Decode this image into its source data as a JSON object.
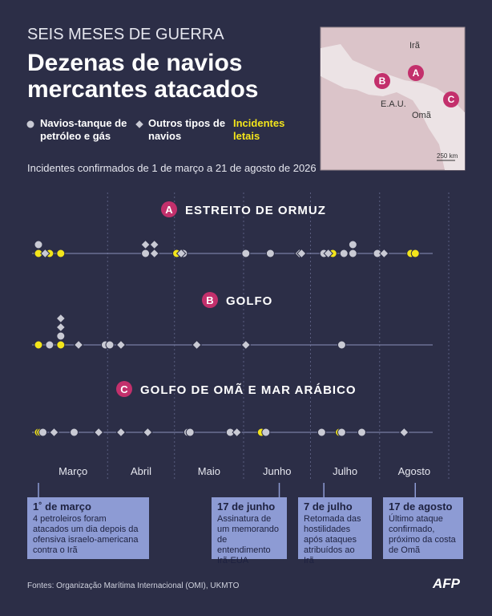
{
  "header": {
    "kicker": "SEIS MESES DE GUERRA",
    "title": "Dezenas de navios mercantes atacados",
    "subtitle": "Incidentes confirmados de 1 de março a 21 de agosto de 2026"
  },
  "chart_data": {
    "type": "strip",
    "series": [
      {
        "name": "Navios-tanque de petróleo e gás",
        "color": "#c9cad4",
        "shape": "circle"
      },
      {
        "name": "Outros tipos de navios",
        "color": "#c9cad4",
        "shape": "diamond"
      },
      {
        "name": "Incidentes letais",
        "color": "#f3e51b",
        "shape": "circle"
      }
    ],
    "xlim": [
      0,
      184
    ],
    "xticks": [
      {
        "value": 0,
        "label": "Março"
      },
      {
        "value": 31,
        "label": "Abril"
      },
      {
        "value": 61,
        "label": "Maio"
      },
      {
        "value": 92,
        "label": "Junho"
      },
      {
        "value": 122,
        "label": "Julho"
      },
      {
        "value": 153,
        "label": "Agosto"
      }
    ],
    "panels": [
      {
        "letter": "A",
        "title": "ESTREITO DE ORMUZ",
        "points": [
          [
            0,
            48,
            65,
            93,
            104,
            128,
            137,
            141,
            141,
            152
          ],
          [
            3,
            48,
            52,
            52,
            64,
            117,
            118,
            130,
            155
          ],
          [
            0,
            5,
            10,
            62,
            132,
            167,
            169
          ]
        ]
      },
      {
        "letter": "B",
        "title": "GOLFO",
        "points": [
          [
            5,
            10,
            30,
            32,
            136
          ],
          [
            10,
            10,
            18,
            37,
            71,
            93
          ],
          [
            0,
            10
          ]
        ]
      },
      {
        "letter": "C",
        "title": "GOLFO DE OMÃ E MAR ARÁBICO",
        "points": [
          [
            2,
            16,
            67,
            68,
            86,
            102,
            127,
            136,
            145
          ],
          [
            7,
            27,
            37,
            49,
            89,
            164
          ],
          [
            0,
            1,
            100,
            135
          ]
        ]
      }
    ],
    "annotations": [
      {
        "x": 0,
        "date": "1˚ de março",
        "text": "4 petroleiros foram atacados um dia depois da ofensiva israelo-americana contra o Irã"
      },
      {
        "x": 108,
        "date": "17 de junho",
        "text": "Assinatura de um memorando de entendimento Irã-EUA"
      },
      {
        "x": 128,
        "date": "7 de julho",
        "text": "Retomada das hostilidades após ataques atribuídos ao Irã"
      },
      {
        "x": 169,
        "date": "17 de agosto",
        "text": "Último ataque confirmado, próximo da costa de Omã"
      }
    ]
  },
  "map": {
    "labels": [
      "Irã",
      "E.A.U.",
      "Omã"
    ],
    "scale": "250 km"
  },
  "footer": {
    "source": "Fontes: Organização Marítima Internacional (OMI), UKMTO",
    "logo": "AFP"
  }
}
